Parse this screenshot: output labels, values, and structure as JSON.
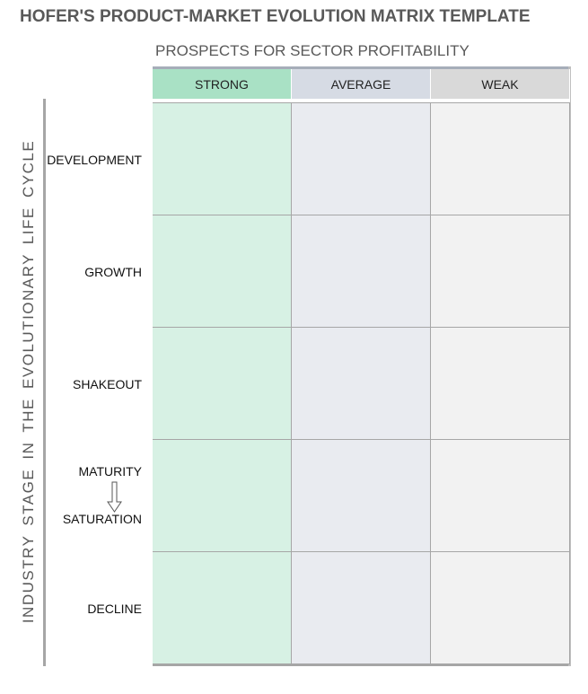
{
  "header": {
    "title": "HOFER'S PRODUCT-MARKET EVOLUTION MATRIX TEMPLATE"
  },
  "columns": {
    "label": "PROSPECTS FOR SECTOR PROFITABILITY",
    "items": [
      "STRONG",
      "AVERAGE",
      "WEAK"
    ]
  },
  "rows": {
    "label": "INDUSTRY STAGE IN THE EVOLUTIONARY LIFE CYCLE",
    "items": [
      {
        "labels": [
          "DEVELOPMENT"
        ]
      },
      {
        "labels": [
          "GROWTH"
        ]
      },
      {
        "labels": [
          "SHAKEOUT"
        ]
      },
      {
        "labels": [
          "MATURITY",
          "SATURATION"
        ]
      },
      {
        "labels": [
          "DECLINE"
        ]
      }
    ]
  }
}
